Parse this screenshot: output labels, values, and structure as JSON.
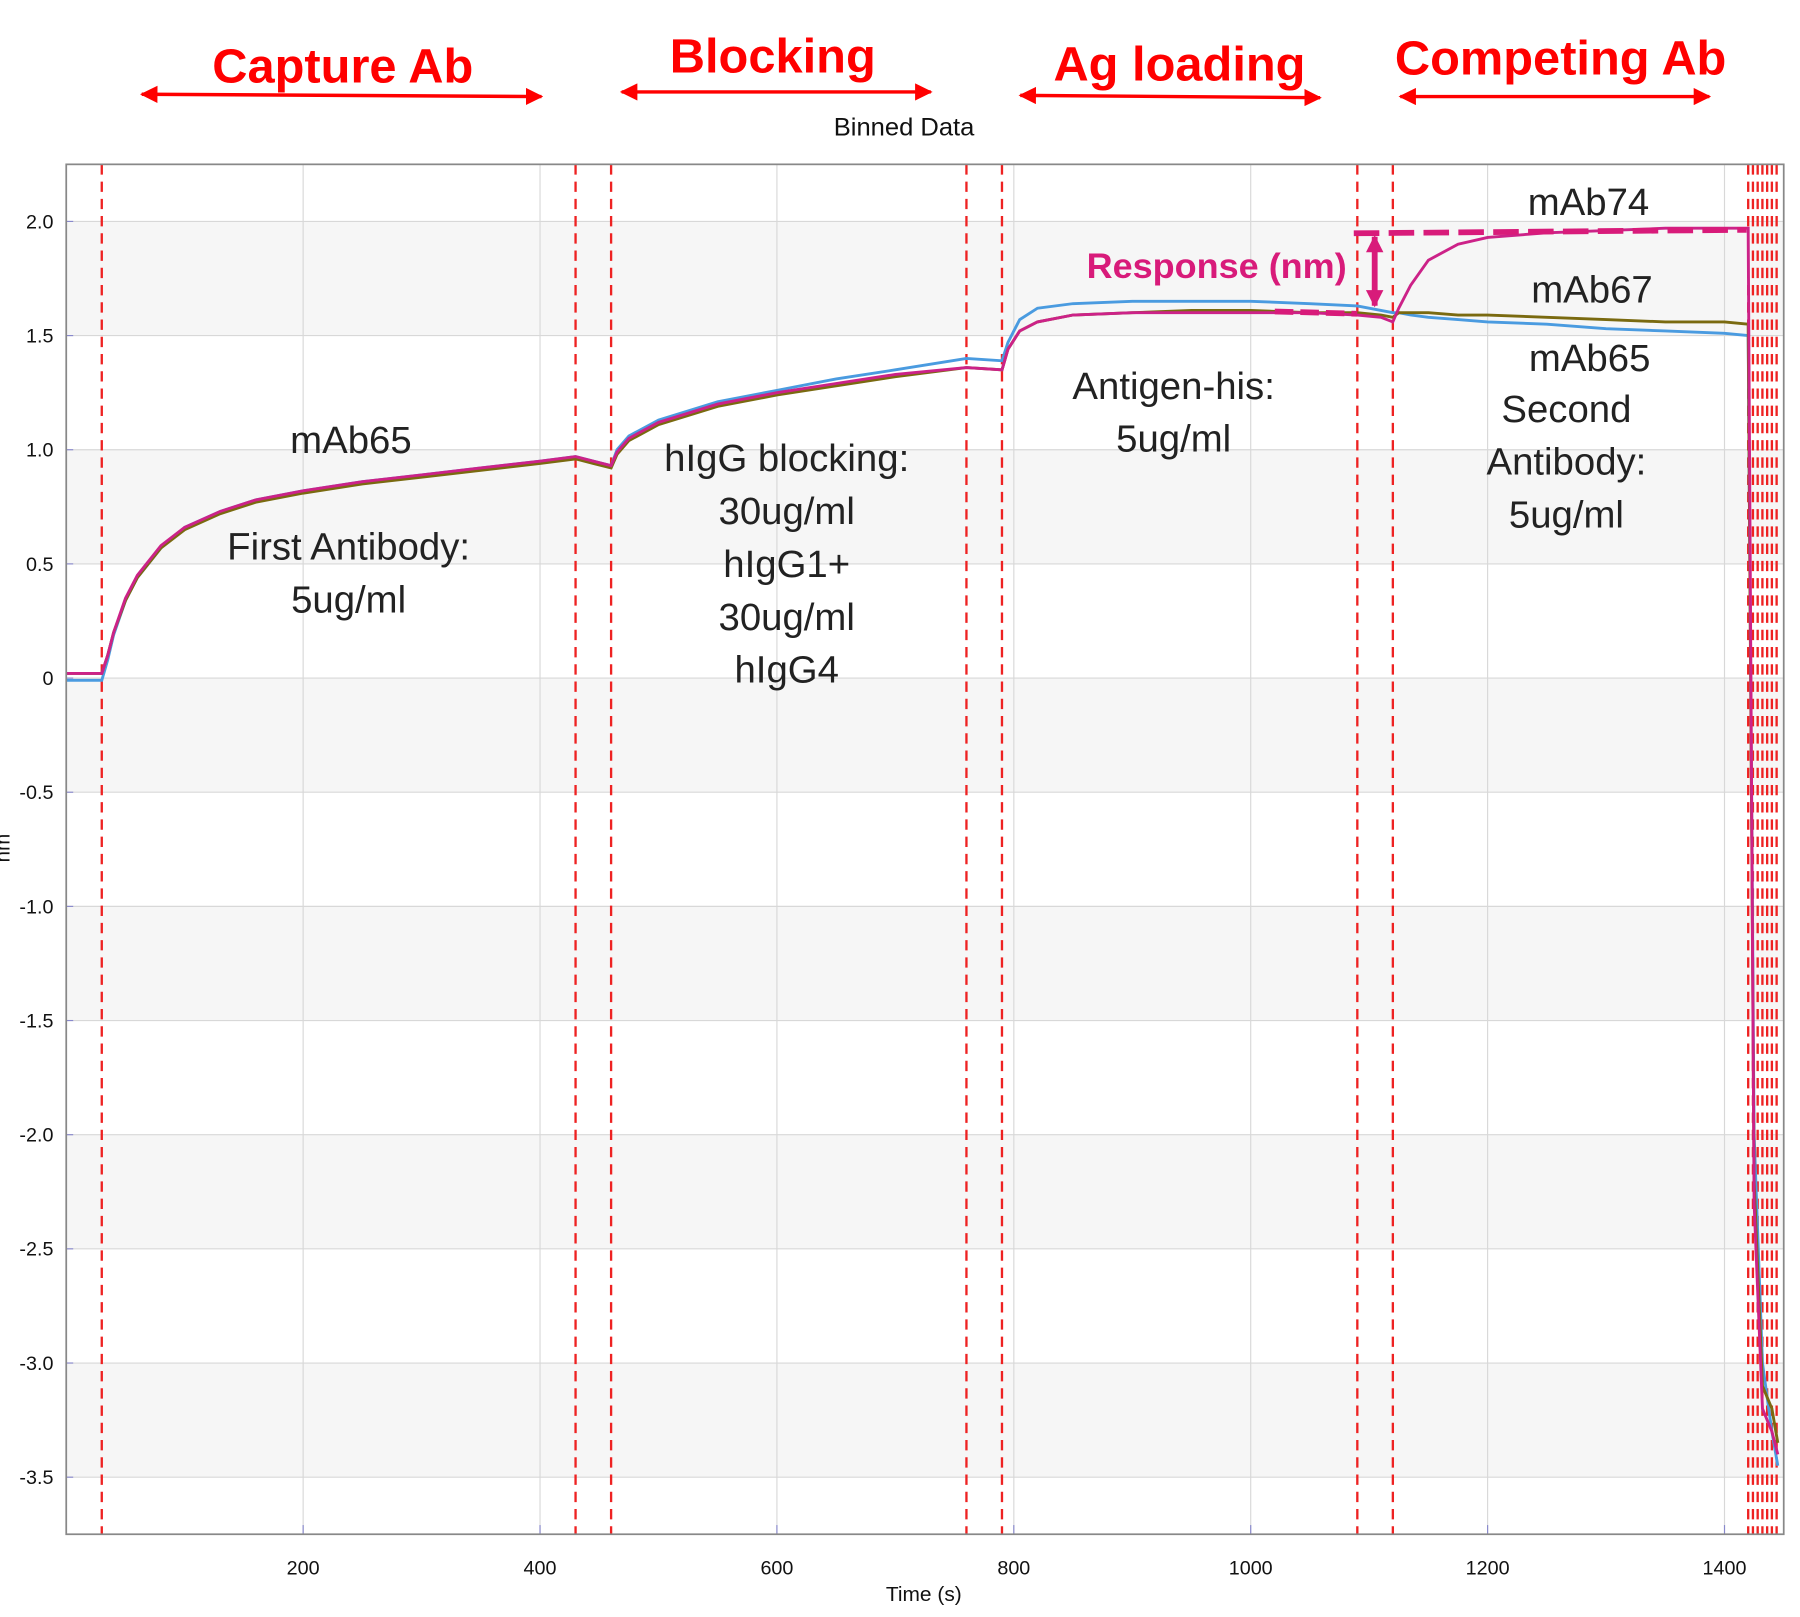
{
  "chart_data": {
    "type": "line",
    "title": "Binned Data",
    "x_label": "Time (s)",
    "y_label": "nm",
    "xlim": [
      0,
      1450
    ],
    "ylim": [
      -3.75,
      2.25
    ],
    "xticks": [
      200,
      400,
      600,
      800,
      1000,
      1200,
      1400
    ],
    "yticks": [
      {
        "value": 2,
        "label": "2.0"
      },
      1.5,
      {
        "value": 1,
        "label": "1.0"
      },
      0.5,
      0,
      -0.5,
      {
        "value": -1,
        "label": "-1.0"
      },
      -1.5,
      {
        "value": -2,
        "label": "-2.0"
      },
      -2.5,
      {
        "value": -3,
        "label": "-3.0"
      },
      -3.5
    ],
    "grid": true,
    "step_boundaries": [
      30,
      430,
      460,
      760,
      790,
      1090,
      1120,
      1420,
      1424,
      1428,
      1432,
      1436,
      1440,
      1444
    ],
    "boundary_color": "#ee2222",
    "phases": [
      "Capture Ab",
      "Blocking",
      "Ag loading",
      "Competing Ab"
    ],
    "annotations": [
      [
        "mAb65"
      ],
      [
        "First Antibody:",
        "5ug/ml"
      ],
      [
        "hIgG blocking:",
        "30ug/ml",
        "hIgG1+",
        "30ug/ml",
        "hIgG4"
      ],
      [
        "Antigen-his:",
        "5ug/ml"
      ],
      [
        "Second",
        "Antibody:",
        "5ug/ml"
      ]
    ],
    "response_label": "Response (nm)",
    "x": [
      0,
      30,
      35,
      40,
      50,
      60,
      80,
      100,
      130,
      160,
      200,
      250,
      300,
      350,
      400,
      430,
      445,
      460,
      465,
      475,
      500,
      550,
      600,
      650,
      700,
      760,
      790,
      795,
      805,
      820,
      850,
      900,
      950,
      1000,
      1050,
      1090,
      1110,
      1120,
      1125,
      1135,
      1150,
      1175,
      1200,
      1250,
      1300,
      1350,
      1400,
      1420,
      1425,
      1432,
      1440,
      1445
    ],
    "series": [
      {
        "name": "mAb74",
        "color": "#cc2288",
        "values": [
          0.02,
          0.02,
          0.1,
          0.2,
          0.35,
          0.45,
          0.58,
          0.66,
          0.73,
          0.78,
          0.82,
          0.86,
          0.89,
          0.92,
          0.95,
          0.97,
          0.95,
          0.93,
          0.99,
          1.05,
          1.12,
          1.2,
          1.25,
          1.29,
          1.33,
          1.36,
          1.35,
          1.44,
          1.52,
          1.56,
          1.59,
          1.6,
          1.6,
          1.6,
          1.6,
          1.59,
          1.58,
          1.56,
          1.62,
          1.72,
          1.83,
          1.9,
          1.93,
          1.95,
          1.96,
          1.97,
          1.97,
          1.97,
          -2.3,
          -3.2,
          -3.3,
          -3.4
        ]
      },
      {
        "name": "mAb67",
        "color": "#7a6a10",
        "values": [
          0.02,
          0.02,
          0.1,
          0.2,
          0.34,
          0.44,
          0.57,
          0.65,
          0.72,
          0.77,
          0.81,
          0.85,
          0.88,
          0.91,
          0.94,
          0.96,
          0.94,
          0.92,
          0.98,
          1.04,
          1.11,
          1.19,
          1.24,
          1.28,
          1.32,
          1.36,
          1.35,
          1.44,
          1.52,
          1.56,
          1.59,
          1.6,
          1.61,
          1.61,
          1.6,
          1.6,
          1.59,
          1.58,
          1.6,
          1.6,
          1.6,
          1.59,
          1.59,
          1.58,
          1.57,
          1.56,
          1.56,
          1.55,
          -2.2,
          -3.1,
          -3.2,
          -3.35
        ]
      },
      {
        "name": "mAb65",
        "color": "#4a9be0",
        "values": [
          -0.01,
          -0.01,
          0.08,
          0.19,
          0.34,
          0.44,
          0.57,
          0.66,
          0.73,
          0.78,
          0.82,
          0.86,
          0.89,
          0.92,
          0.95,
          0.97,
          0.95,
          0.93,
          1.0,
          1.06,
          1.13,
          1.21,
          1.26,
          1.31,
          1.35,
          1.4,
          1.39,
          1.47,
          1.57,
          1.62,
          1.64,
          1.65,
          1.65,
          1.65,
          1.64,
          1.63,
          1.61,
          1.6,
          1.6,
          1.59,
          1.58,
          1.57,
          1.56,
          1.55,
          1.53,
          1.52,
          1.51,
          1.5,
          -2.0,
          -3.0,
          -3.3,
          -3.45
        ]
      }
    ]
  }
}
